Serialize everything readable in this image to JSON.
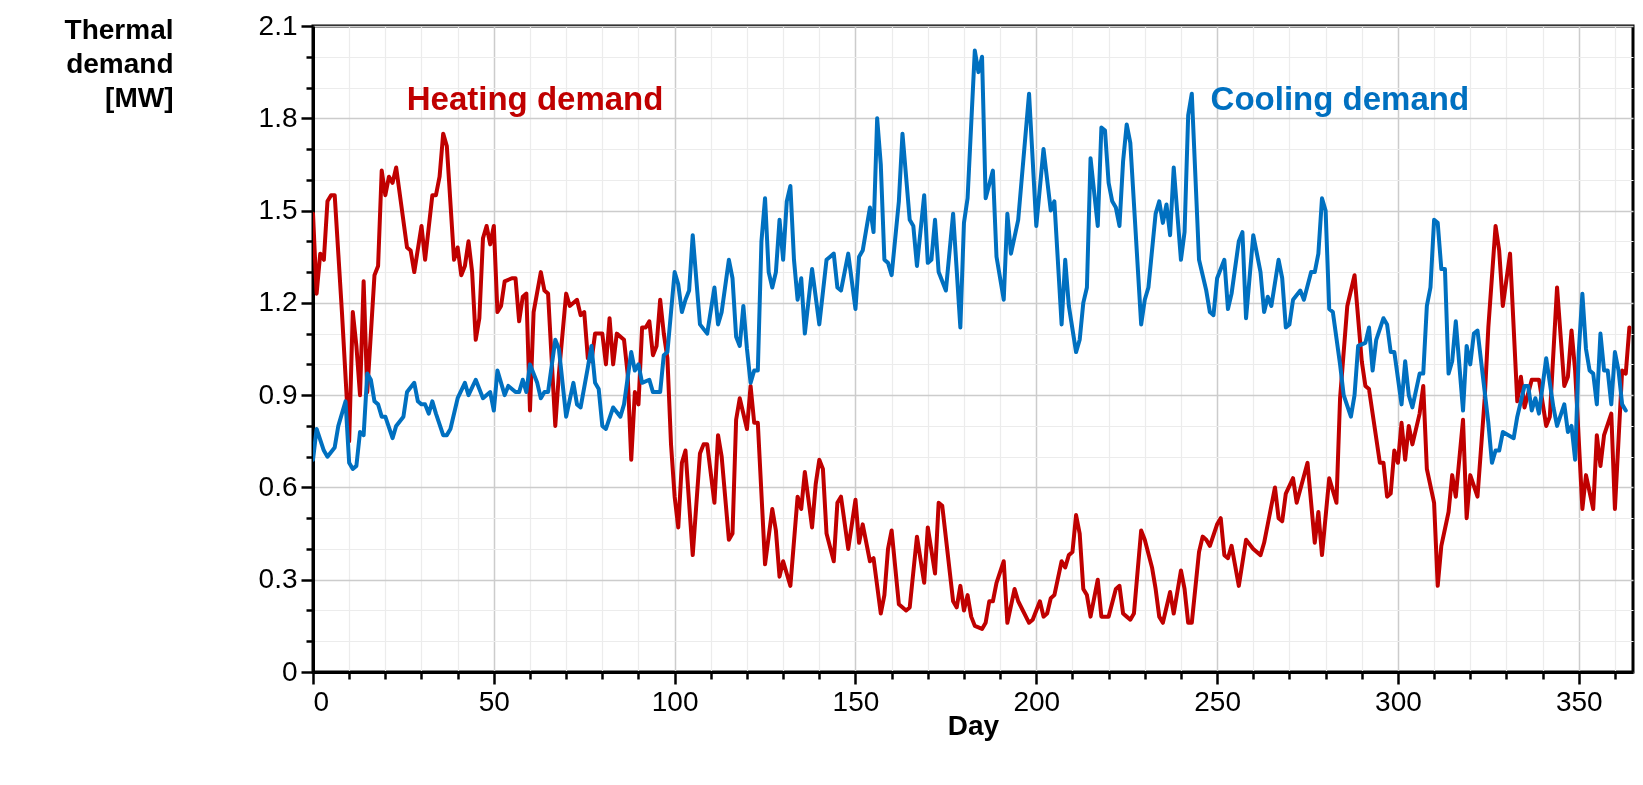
{
  "chart_data": {
    "type": "line",
    "xlabel": "Day",
    "ylabel": "Thermal demand [MW]",
    "xlim": [
      0,
      365
    ],
    "ylim": [
      0,
      2.1
    ],
    "xticks": [
      0,
      {
        "value": 10,
        "label": null
      },
      {
        "value": 20,
        "label": null
      },
      {
        "value": 30,
        "label": null
      },
      {
        "value": 40,
        "label": null
      },
      50,
      {
        "value": 60,
        "label": null
      },
      {
        "value": 70,
        "label": null
      },
      {
        "value": 80,
        "label": null
      },
      {
        "value": 90,
        "label": null
      },
      100,
      {
        "value": 110,
        "label": null
      },
      {
        "value": 120,
        "label": null
      },
      {
        "value": 130,
        "label": null
      },
      {
        "value": 140,
        "label": null
      },
      150,
      {
        "value": 160,
        "label": null
      },
      {
        "value": 170,
        "label": null
      },
      {
        "value": 180,
        "label": null
      },
      {
        "value": 190,
        "label": null
      },
      200,
      {
        "value": 210,
        "label": null
      },
      {
        "value": 220,
        "label": null
      },
      {
        "value": 230,
        "label": null
      },
      {
        "value": 240,
        "label": null
      },
      250,
      {
        "value": 260,
        "label": null
      },
      {
        "value": 270,
        "label": null
      },
      {
        "value": 280,
        "label": null
      },
      {
        "value": 290,
        "label": null
      },
      300,
      {
        "value": 310,
        "label": null
      },
      {
        "value": 320,
        "label": null
      },
      {
        "value": 330,
        "label": null
      },
      {
        "value": 340,
        "label": null
      },
      350,
      {
        "value": 360,
        "label": null
      }
    ],
    "yticks": [
      0,
      {
        "value": 0.1,
        "label": null
      },
      {
        "value": 0.2,
        "label": null
      },
      0.3,
      {
        "value": 0.4,
        "label": null
      },
      {
        "value": 0.5,
        "label": null
      },
      0.6,
      {
        "value": 0.7,
        "label": null
      },
      {
        "value": 0.8,
        "label": null
      },
      0.9,
      {
        "value": 1.0,
        "label": null
      },
      {
        "value": 1.1,
        "label": null
      },
      1.2,
      {
        "value": 1.3,
        "label": null
      },
      {
        "value": 1.4,
        "label": null
      },
      1.5,
      {
        "value": 1.6,
        "label": null
      },
      {
        "value": 1.7,
        "label": null
      },
      1.8,
      {
        "value": 1.9,
        "label": null
      },
      {
        "value": 2.0,
        "label": null
      },
      2.1
    ],
    "grid": true,
    "legend": false,
    "series": [
      {
        "name": "Heating demand",
        "color": "#c00000",
        "x": [
          0,
          1,
          2,
          3,
          4,
          5,
          6,
          8,
          10,
          11,
          12,
          13,
          14,
          15,
          17,
          18,
          19,
          20,
          21,
          22,
          23,
          26,
          27,
          28,
          30,
          31,
          33,
          34,
          35,
          36,
          37,
          39,
          40,
          41,
          42,
          43,
          44,
          45,
          46,
          47,
          48,
          49,
          50,
          51,
          52,
          53,
          55,
          56,
          57,
          58,
          59,
          60,
          61,
          63,
          64,
          65,
          67,
          68,
          70,
          71,
          73,
          74,
          75,
          76,
          77,
          78,
          80,
          81,
          82,
          83,
          84,
          86,
          87,
          88,
          89,
          90,
          91,
          92,
          93,
          94,
          95,
          96,
          97,
          98,
          99,
          100,
          101,
          102,
          103,
          105,
          107,
          108,
          109,
          111,
          112,
          113,
          115,
          116,
          117,
          118,
          120,
          121,
          122,
          123,
          125,
          127,
          128,
          129,
          130,
          132,
          134,
          135,
          136,
          138,
          139,
          140,
          141,
          142,
          144,
          145,
          146,
          148,
          150,
          151,
          152,
          154,
          155,
          157,
          158,
          159,
          160,
          162,
          164,
          165,
          167,
          169,
          170,
          172,
          173,
          174,
          177,
          178,
          179,
          180,
          181,
          182,
          183,
          185,
          186,
          187,
          188,
          189,
          191,
          192,
          194,
          195,
          198,
          199,
          201,
          202,
          203,
          204,
          205,
          207,
          208,
          209,
          210,
          211,
          212,
          213,
          214,
          215,
          217,
          218,
          220,
          222,
          223,
          224,
          225,
          226,
          227,
          229,
          230,
          232,
          233,
          234,
          235,
          237,
          238,
          240,
          241,
          242,
          243,
          245,
          246,
          247,
          248,
          250,
          251,
          252,
          253,
          254,
          256,
          258,
          260,
          262,
          263,
          264,
          266,
          267,
          268,
          269,
          271,
          272,
          275,
          277,
          278,
          279,
          281,
          283,
          284,
          286,
          288,
          290,
          291,
          292,
          295,
          296,
          297,
          298,
          299,
          300,
          301,
          302,
          303,
          304,
          306,
          307,
          308,
          310,
          311,
          312,
          314,
          315,
          316,
          318,
          319,
          320,
          322,
          324,
          325,
          327,
          328,
          329,
          331,
          333,
          334,
          335,
          337,
          339,
          341,
          342,
          344,
          346,
          347,
          348,
          349,
          351,
          352,
          354,
          355,
          356,
          357,
          359,
          360,
          362,
          363,
          364
        ],
        "values": [
          1.49,
          1.23,
          1.36,
          1.34,
          1.53,
          1.55,
          1.55,
          1.17,
          0.75,
          1.17,
          1.06,
          0.9,
          1.27,
          0.91,
          1.29,
          1.32,
          1.63,
          1.55,
          1.61,
          1.59,
          1.64,
          1.38,
          1.37,
          1.3,
          1.45,
          1.34,
          1.55,
          1.55,
          1.61,
          1.75,
          1.71,
          1.34,
          1.38,
          1.29,
          1.32,
          1.4,
          1.3,
          1.08,
          1.15,
          1.41,
          1.45,
          1.39,
          1.45,
          1.17,
          1.19,
          1.27,
          1.28,
          1.28,
          1.14,
          1.22,
          1.23,
          0.85,
          1.17,
          1.3,
          1.24,
          1.23,
          0.8,
          0.97,
          1.23,
          1.19,
          1.21,
          1.16,
          1.17,
          1.02,
          1.01,
          1.1,
          1.1,
          1.0,
          1.15,
          1.0,
          1.1,
          1.08,
          0.97,
          0.69,
          0.91,
          0.87,
          1.12,
          1.12,
          1.14,
          1.03,
          1.06,
          1.21,
          1.1,
          1.02,
          0.74,
          0.57,
          0.47,
          0.68,
          0.72,
          0.38,
          0.71,
          0.74,
          0.74,
          0.55,
          0.77,
          0.7,
          0.43,
          0.45,
          0.82,
          0.89,
          0.79,
          0.93,
          0.81,
          0.81,
          0.35,
          0.53,
          0.46,
          0.31,
          0.36,
          0.28,
          0.57,
          0.53,
          0.65,
          0.47,
          0.61,
          0.69,
          0.66,
          0.45,
          0.36,
          0.55,
          0.57,
          0.4,
          0.56,
          0.42,
          0.48,
          0.36,
          0.37,
          0.19,
          0.25,
          0.4,
          0.46,
          0.22,
          0.2,
          0.21,
          0.44,
          0.29,
          0.47,
          0.32,
          0.55,
          0.54,
          0.23,
          0.21,
          0.28,
          0.2,
          0.25,
          0.18,
          0.15,
          0.14,
          0.16,
          0.23,
          0.23,
          0.29,
          0.36,
          0.16,
          0.27,
          0.23,
          0.16,
          0.17,
          0.23,
          0.18,
          0.19,
          0.24,
          0.25,
          0.36,
          0.34,
          0.38,
          0.39,
          0.51,
          0.45,
          0.27,
          0.25,
          0.18,
          0.3,
          0.18,
          0.18,
          0.27,
          0.28,
          0.19,
          0.18,
          0.17,
          0.19,
          0.46,
          0.43,
          0.34,
          0.27,
          0.18,
          0.16,
          0.26,
          0.19,
          0.33,
          0.27,
          0.16,
          0.16,
          0.39,
          0.44,
          0.43,
          0.41,
          0.48,
          0.5,
          0.38,
          0.37,
          0.41,
          0.28,
          0.43,
          0.4,
          0.38,
          0.42,
          0.48,
          0.6,
          0.5,
          0.49,
          0.58,
          0.63,
          0.55,
          0.68,
          0.42,
          0.52,
          0.38,
          0.63,
          0.55,
          0.89,
          1.19,
          1.29,
          1.01,
          0.93,
          0.92,
          0.68,
          0.68,
          0.57,
          0.58,
          0.72,
          0.68,
          0.81,
          0.69,
          0.8,
          0.74,
          0.84,
          0.93,
          0.66,
          0.55,
          0.28,
          0.41,
          0.52,
          0.64,
          0.57,
          0.82,
          0.5,
          0.64,
          0.57,
          0.89,
          1.12,
          1.45,
          1.37,
          1.19,
          1.36,
          0.88,
          0.96,
          0.86,
          0.95,
          0.95,
          0.8,
          0.83,
          1.25,
          0.93,
          0.96,
          1.11,
          0.98,
          0.53,
          0.64,
          0.53,
          0.77,
          0.67,
          0.77,
          0.84,
          0.53,
          0.98,
          0.97,
          1.12
        ]
      },
      {
        "name": "Cooling demand",
        "color": "#0070c0",
        "x": [
          0,
          1,
          3,
          4,
          6,
          7,
          9,
          10,
          11,
          12,
          13,
          14,
          15,
          16,
          17,
          18,
          19,
          20,
          22,
          23,
          25,
          26,
          28,
          29,
          30,
          31,
          32,
          33,
          34,
          36,
          37,
          38,
          40,
          42,
          43,
          45,
          47,
          49,
          50,
          51,
          53,
          54,
          56,
          57,
          58,
          59,
          60,
          62,
          63,
          64,
          65,
          67,
          68,
          70,
          72,
          73,
          74,
          76,
          77,
          78,
          79,
          80,
          81,
          83,
          85,
          86,
          88,
          89,
          90,
          91,
          93,
          94,
          96,
          97,
          98,
          99,
          100,
          101,
          102,
          103,
          104,
          105,
          107,
          109,
          111,
          112,
          113,
          115,
          116,
          117,
          118,
          119,
          120,
          121,
          122,
          123,
          124,
          125,
          126,
          127,
          128,
          129,
          130,
          131,
          132,
          133,
          134,
          135,
          136,
          138,
          140,
          142,
          143,
          144,
          145,
          146,
          148,
          150,
          151,
          152,
          154,
          155,
          156,
          157,
          158,
          159,
          160,
          162,
          163,
          164,
          165,
          166,
          167,
          169,
          170,
          171,
          172,
          173,
          175,
          177,
          179,
          180,
          181,
          183,
          184,
          185,
          186,
          188,
          189,
          191,
          192,
          193,
          195,
          198,
          200,
          202,
          204,
          205,
          207,
          208,
          209,
          211,
          212,
          213,
          214,
          215,
          217,
          218,
          219,
          220,
          221,
          222,
          223,
          224,
          225,
          226,
          229,
          230,
          231,
          233,
          234,
          235,
          236,
          237,
          238,
          240,
          241,
          242,
          243,
          245,
          247,
          248,
          249,
          250,
          252,
          253,
          254,
          256,
          257,
          258,
          260,
          262,
          263,
          264,
          265,
          267,
          268,
          269,
          270,
          271,
          273,
          274,
          276,
          277,
          278,
          279,
          280,
          281,
          282,
          284,
          285,
          287,
          288,
          289,
          291,
          292,
          293,
          294,
          296,
          297,
          298,
          299,
          301,
          302,
          303,
          304,
          306,
          307,
          308,
          309,
          310,
          311,
          312,
          313,
          314,
          315,
          316,
          318,
          319,
          320,
          321,
          322,
          325,
          326,
          327,
          328,
          329,
          332,
          333,
          335,
          336,
          337,
          338,
          339,
          341,
          343,
          344,
          346,
          347,
          348,
          349,
          350,
          351,
          352,
          353,
          354,
          355,
          356,
          357,
          358,
          359,
          360,
          361,
          362,
          363
        ],
        "values": [
          0.69,
          0.79,
          0.72,
          0.7,
          0.73,
          0.8,
          0.88,
          0.68,
          0.66,
          0.67,
          0.78,
          0.77,
          0.97,
          0.95,
          0.88,
          0.87,
          0.83,
          0.83,
          0.76,
          0.8,
          0.83,
          0.91,
          0.94,
          0.88,
          0.87,
          0.87,
          0.84,
          0.88,
          0.84,
          0.77,
          0.77,
          0.79,
          0.89,
          0.94,
          0.9,
          0.95,
          0.89,
          0.91,
          0.85,
          0.98,
          0.9,
          0.93,
          0.91,
          0.91,
          0.95,
          0.91,
          1.0,
          0.94,
          0.89,
          0.91,
          0.91,
          1.08,
          1.05,
          0.83,
          0.94,
          0.87,
          0.86,
          0.99,
          1.06,
          0.94,
          0.92,
          0.8,
          0.79,
          0.86,
          0.83,
          0.87,
          1.04,
          0.98,
          1.0,
          0.94,
          0.95,
          0.91,
          0.91,
          1.03,
          1.04,
          1.17,
          1.3,
          1.26,
          1.17,
          1.21,
          1.24,
          1.42,
          1.13,
          1.1,
          1.25,
          1.13,
          1.17,
          1.34,
          1.28,
          1.09,
          1.06,
          1.19,
          1.05,
          0.94,
          0.98,
          0.98,
          1.4,
          1.54,
          1.3,
          1.25,
          1.3,
          1.47,
          1.34,
          1.53,
          1.58,
          1.34,
          1.21,
          1.28,
          1.1,
          1.31,
          1.13,
          1.34,
          1.35,
          1.36,
          1.25,
          1.24,
          1.36,
          1.18,
          1.35,
          1.37,
          1.51,
          1.43,
          1.8,
          1.65,
          1.34,
          1.33,
          1.29,
          1.53,
          1.75,
          1.61,
          1.47,
          1.45,
          1.32,
          1.55,
          1.33,
          1.34,
          1.47,
          1.3,
          1.24,
          1.49,
          1.12,
          1.46,
          1.54,
          2.02,
          1.95,
          2.0,
          1.54,
          1.63,
          1.35,
          1.21,
          1.49,
          1.36,
          1.47,
          1.88,
          1.45,
          1.7,
          1.5,
          1.53,
          1.13,
          1.34,
          1.19,
          1.04,
          1.08,
          1.2,
          1.25,
          1.67,
          1.45,
          1.77,
          1.76,
          1.59,
          1.53,
          1.51,
          1.45,
          1.66,
          1.78,
          1.72,
          1.13,
          1.21,
          1.25,
          1.49,
          1.53,
          1.46,
          1.52,
          1.42,
          1.64,
          1.34,
          1.43,
          1.81,
          1.88,
          1.34,
          1.24,
          1.17,
          1.16,
          1.28,
          1.34,
          1.18,
          1.23,
          1.4,
          1.43,
          1.15,
          1.42,
          1.3,
          1.17,
          1.22,
          1.19,
          1.34,
          1.28,
          1.12,
          1.13,
          1.21,
          1.24,
          1.21,
          1.3,
          1.3,
          1.36,
          1.54,
          1.5,
          1.18,
          1.17,
          1.0,
          0.9,
          0.83,
          0.9,
          1.06,
          1.07,
          1.12,
          0.98,
          1.08,
          1.15,
          1.13,
          1.04,
          1.04,
          0.87,
          1.01,
          0.9,
          0.86,
          0.97,
          0.97,
          1.19,
          1.25,
          1.47,
          1.46,
          1.31,
          1.31,
          0.97,
          1.01,
          1.14,
          0.85,
          1.06,
          1.0,
          1.1,
          1.11,
          0.81,
          0.68,
          0.72,
          0.72,
          0.78,
          0.76,
          0.83,
          0.93,
          0.93,
          0.85,
          0.89,
          0.84,
          1.02,
          0.86,
          0.8,
          0.87,
          0.78,
          0.8,
          0.69,
          1.04,
          1.23,
          1.05,
          0.98,
          0.97,
          0.87,
          1.1,
          0.98,
          0.98,
          0.87,
          1.04,
          0.98,
          0.87,
          0.85
        ]
      }
    ]
  }
}
